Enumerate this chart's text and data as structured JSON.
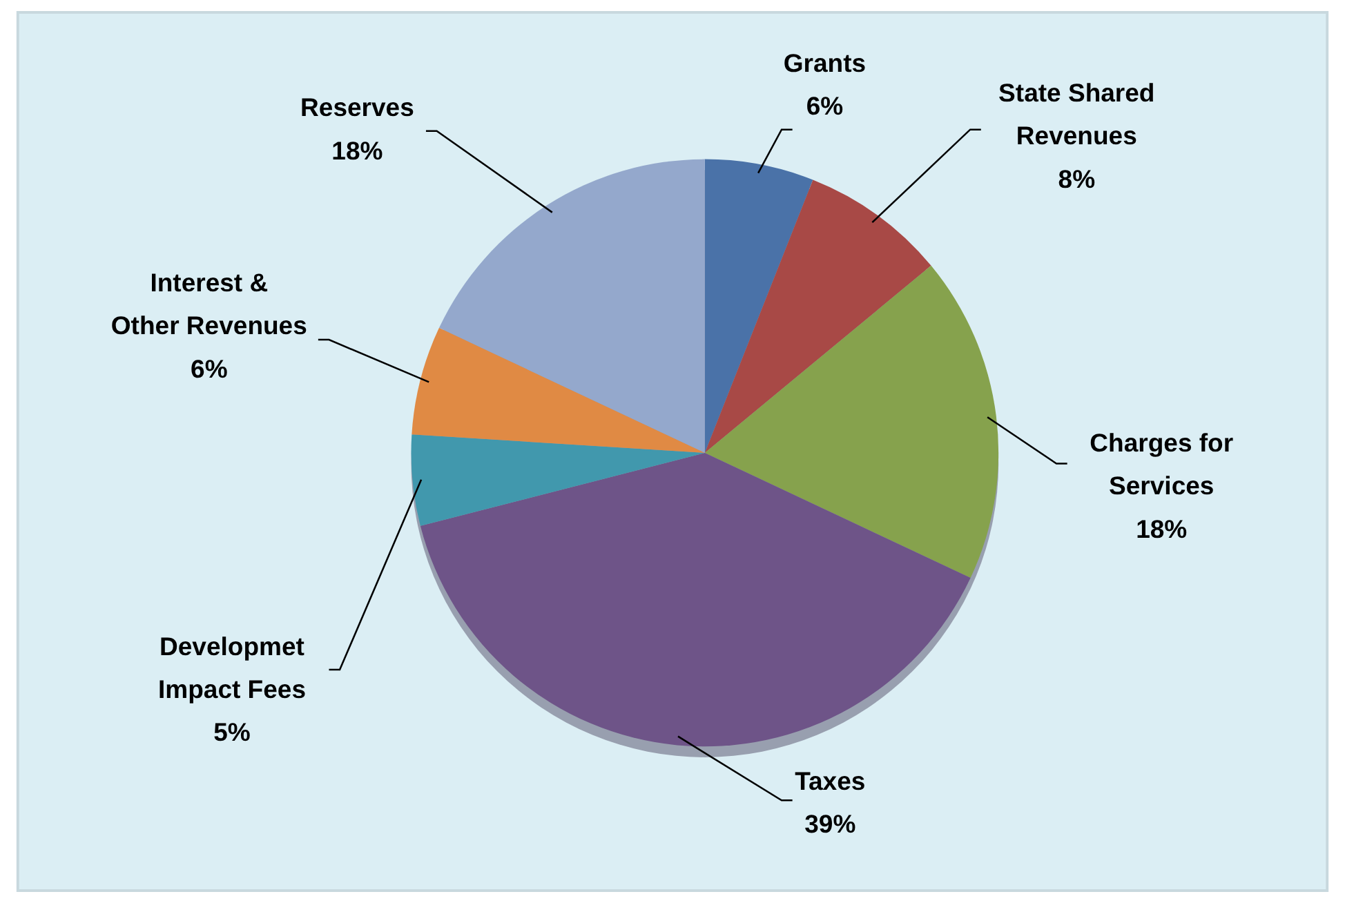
{
  "chart_data": {
    "type": "pie",
    "categories": [
      "Grants",
      "State Shared Revenues",
      "Charges for Services",
      "Taxes",
      "Developmet Impact Fees",
      "Interest & Other Revenues",
      "Reserves"
    ],
    "values": [
      6,
      8,
      18,
      39,
      5,
      6,
      18
    ],
    "colors": [
      "#4a72a8",
      "#a84946",
      "#86a24d",
      "#6e5488",
      "#4198ad",
      "#e08a44",
      "#94a8cc"
    ],
    "value_labels": [
      "6%",
      "8%",
      "18%",
      "39%",
      "5%",
      "6%",
      "18%"
    ]
  }
}
